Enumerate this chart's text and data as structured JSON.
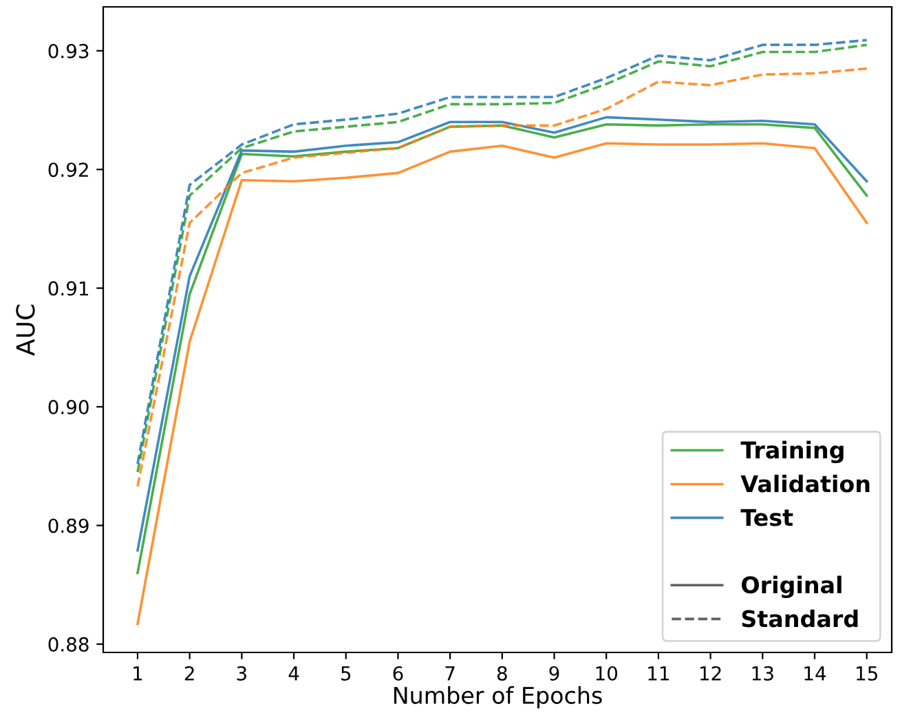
{
  "chart_data": {
    "type": "line",
    "xlabel": "Number of Epochs",
    "ylabel": "AUC",
    "x": [
      1,
      2,
      3,
      4,
      5,
      6,
      7,
      8,
      9,
      10,
      11,
      12,
      13,
      14,
      15
    ],
    "xlim": [
      0.34,
      15.48
    ],
    "xticks": [
      1,
      2,
      3,
      4,
      5,
      6,
      7,
      8,
      9,
      10,
      11,
      12,
      13,
      14,
      15
    ],
    "ylim": [
      0.8793,
      0.9337
    ],
    "yticks": [
      {
        "value": 0.88,
        "label": "0.88"
      },
      {
        "value": 0.89,
        "label": "0.89"
      },
      {
        "value": 0.9,
        "label": "0.90"
      },
      {
        "value": 0.91,
        "label": "0.91"
      },
      {
        "value": 0.92,
        "label": "0.92"
      },
      {
        "value": 0.93,
        "label": "0.93"
      }
    ],
    "grid": false,
    "legend": "bottom right",
    "marker": "none",
    "series": [
      {
        "name": "Training",
        "color": "#2ca02c",
        "line_style": "solid",
        "values": [
          0.886,
          0.9095,
          0.9213,
          0.9211,
          0.9215,
          0.9218,
          0.9236,
          0.9237,
          0.9227,
          0.9238,
          0.9237,
          0.9238,
          0.9238,
          0.9235,
          0.9178
        ]
      },
      {
        "name": "Validation",
        "color": "#ff7f0e",
        "line_style": "solid",
        "values": [
          0.8817,
          0.9055,
          0.9191,
          0.919,
          0.9193,
          0.9197,
          0.9215,
          0.922,
          0.921,
          0.9222,
          0.9221,
          0.9221,
          0.9222,
          0.9218,
          0.9155
        ]
      },
      {
        "name": "Test",
        "color": "#1f77b4",
        "line_style": "solid",
        "values": [
          0.8879,
          0.911,
          0.9216,
          0.9215,
          0.922,
          0.9223,
          0.924,
          0.924,
          0.9231,
          0.9244,
          0.9242,
          0.924,
          0.9241,
          0.9238,
          0.919
        ]
      },
      {
        "color": "#2ca02c",
        "line_style": "dashed",
        "values": [
          0.8945,
          0.9178,
          0.9218,
          0.9232,
          0.9236,
          0.924,
          0.9255,
          0.9255,
          0.9256,
          0.9272,
          0.9291,
          0.9287,
          0.9299,
          0.9299,
          0.9305
        ]
      },
      {
        "color": "#ff7f0e",
        "line_style": "dashed",
        "values": [
          0.8933,
          0.9155,
          0.9197,
          0.921,
          0.9214,
          0.9218,
          0.9236,
          0.9237,
          0.9237,
          0.9251,
          0.9274,
          0.9271,
          0.928,
          0.9281,
          0.9285
        ]
      },
      {
        "color": "#1f77b4",
        "line_style": "dashed",
        "values": [
          0.8952,
          0.9187,
          0.9221,
          0.9238,
          0.9242,
          0.9247,
          0.9261,
          0.9261,
          0.9261,
          0.9277,
          0.9296,
          0.9292,
          0.9305,
          0.9305,
          0.9309
        ]
      },
      {
        "name": "Original",
        "color": "#444444",
        "line_style": "solid",
        "values": [
          null,
          null,
          null,
          null,
          null,
          null,
          null,
          null,
          null,
          null,
          null,
          null,
          null,
          null,
          null
        ]
      },
      {
        "name": "Standard",
        "color": "#444444",
        "line_style": "dashed",
        "values": [
          null,
          null,
          null,
          null,
          null,
          null,
          null,
          null,
          null,
          null,
          null,
          null,
          null,
          null,
          null
        ]
      }
    ]
  }
}
